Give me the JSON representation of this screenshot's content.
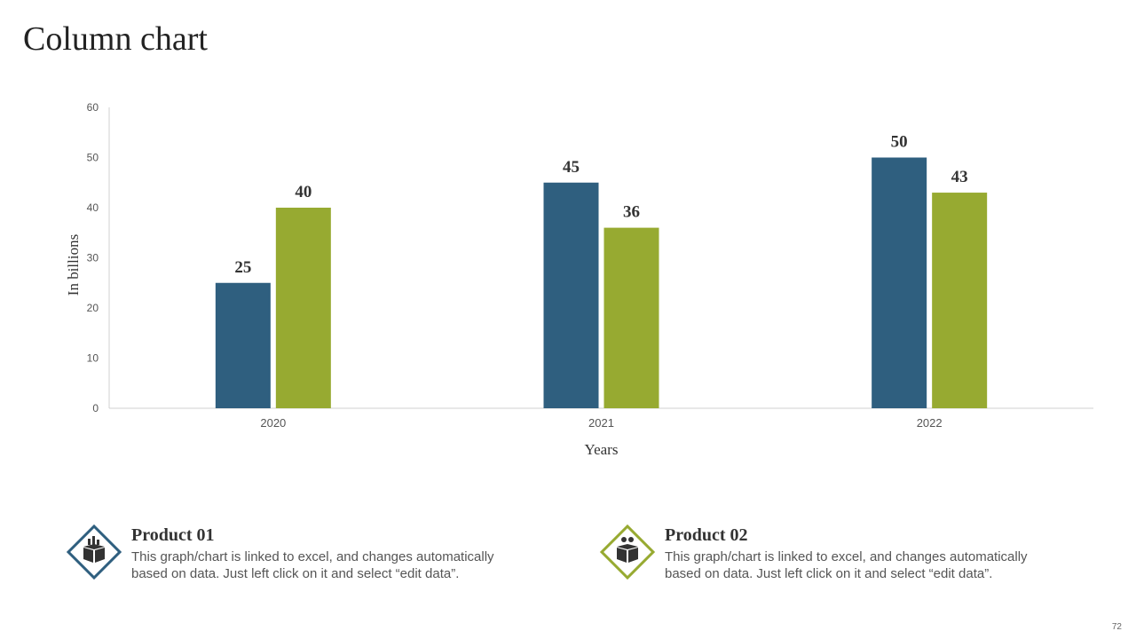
{
  "title": "Column chart",
  "colors": {
    "series1": "#2F5F7F",
    "series2": "#97AA31",
    "axis": "#d0d0d0",
    "tick": "#555555",
    "label": "#333333"
  },
  "chart_data": {
    "type": "bar",
    "categories": [
      "2020",
      "2021",
      "2022"
    ],
    "series": [
      {
        "name": "Product 01",
        "values": [
          25,
          45,
          50
        ]
      },
      {
        "name": "Product 02",
        "values": [
          40,
          36,
          43
        ]
      }
    ],
    "title": "",
    "xlabel": "Years",
    "ylabel": "In billions",
    "ylim": [
      0,
      60
    ],
    "yticks": [
      0,
      10,
      20,
      30,
      40,
      50,
      60
    ],
    "grid": false
  },
  "legend": [
    {
      "title": "Product 01",
      "description_line1": "This graph/chart is linked to excel, and changes automatically",
      "description_line2": "based on data. Just left click on it and select “edit data”.",
      "icon": "box-chart-icon",
      "color": "#2F5F7F"
    },
    {
      "title": "Product 02",
      "description_line1": "This graph/chart is linked to excel, and changes automatically",
      "description_line2": "based on data. Just left click on it and select “edit data”.",
      "icon": "gift-box-icon",
      "color": "#97AA31"
    }
  ],
  "page_number": "72"
}
